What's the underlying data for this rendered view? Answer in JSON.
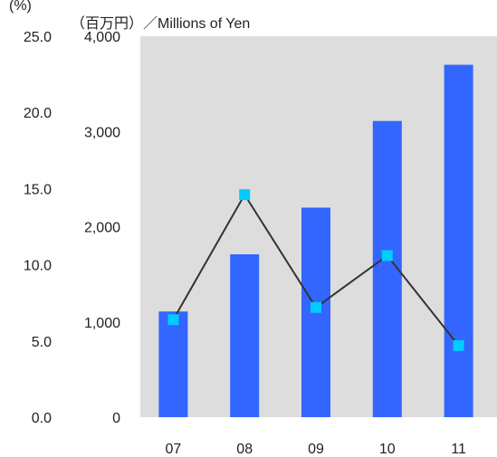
{
  "chart_data": {
    "type": "bar",
    "categories": [
      "07",
      "08",
      "09",
      "10",
      "11"
    ],
    "series": [
      {
        "kind": "bar",
        "axis": "right",
        "values": [
          1110,
          1710,
          2200,
          3110,
          3700
        ],
        "color": "#3366ff"
      },
      {
        "kind": "line",
        "axis": "left",
        "values": [
          6.4,
          14.6,
          7.2,
          10.6,
          4.7
        ],
        "color": "#00ccff",
        "line_color": "#333333"
      }
    ],
    "y_left": {
      "label": "(%)",
      "ticks": [
        "25.0",
        "20.0",
        "15.0",
        "10.0",
        "5.0",
        "0.0"
      ],
      "range": [
        0,
        25
      ]
    },
    "y_right": {
      "label": "（百万円）／Millions of Yen",
      "ticks": [
        "4,000",
        "3,000",
        "2,000",
        "1,000",
        "0"
      ],
      "range": [
        0,
        4000
      ]
    },
    "plot_background": "#dddddd",
    "grid": false,
    "legend": "none"
  }
}
